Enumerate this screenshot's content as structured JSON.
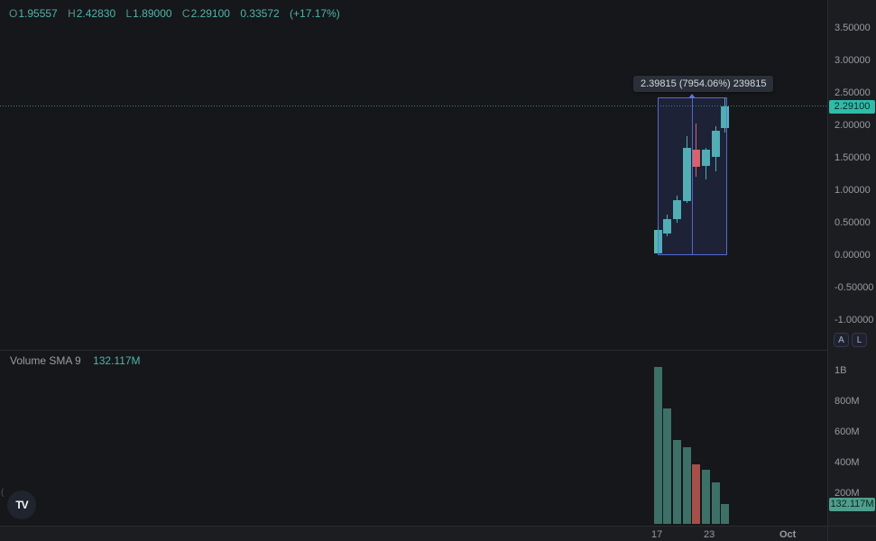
{
  "legend": {
    "o_label": "O",
    "o_value": "1.95557",
    "h_label": "H",
    "h_value": "2.42830",
    "l_label": "L",
    "l_value": "1.89000",
    "c_label": "C",
    "c_value": "2.29100",
    "change": "0.33572",
    "change_pct": "(+17.17%)"
  },
  "tooltip": {
    "text": "2.39815 (7954.06%) 239815"
  },
  "price_axis": {
    "price_badge": "2.29100",
    "buttons": [
      "A",
      "L"
    ]
  },
  "volume_pane": {
    "title": "Volume SMA 9",
    "value": "132.117M",
    "badge": "132.117M"
  },
  "time_axis": {
    "labels": [
      "17",
      "23",
      "Oct"
    ]
  },
  "logo_text": "TV",
  "left_edge_glyph": "(",
  "colors": {
    "candle_up": "#53b8ae",
    "candle_down": "#ef6156",
    "volume_up": "#3d7167",
    "volume_down": "#a44f49",
    "accent_teal": "#4db6ac",
    "measure_blue": "#5c72e4",
    "price_badge_bg": "#2fbca8",
    "volume_badge_bg": "#4f9f8e"
  },
  "chart_data": {
    "type": "candlestick",
    "legend_note": "values read from pixels; last candle from legend",
    "candles": [
      {
        "open": 0.03,
        "high": 0.44,
        "low": 0.03,
        "close": 0.392,
        "volume": 1024000000
      },
      {
        "open": 0.333,
        "high": 0.625,
        "low": 0.29,
        "close": 0.556,
        "volume": 753000000
      },
      {
        "open": 0.56,
        "high": 0.92,
        "low": 0.5,
        "close": 0.847,
        "volume": 547000000
      },
      {
        "open": 0.83,
        "high": 1.83,
        "low": 0.8,
        "close": 1.653,
        "volume": 500000000
      },
      {
        "open": 1.625,
        "high": 2.03,
        "low": 1.21,
        "close": 1.361,
        "volume": 388000000
      },
      {
        "open": 1.375,
        "high": 1.65,
        "low": 1.17,
        "close": 1.625,
        "volume": 353000000
      },
      {
        "open": 1.514,
        "high": 1.99,
        "low": 1.29,
        "close": 1.917,
        "volume": 271000000
      },
      {
        "open": 1.95557,
        "high": 2.4283,
        "low": 1.89,
        "close": 2.291,
        "volume": 132117000
      }
    ],
    "last_price": 2.291,
    "last_volume": 132117000,
    "price_ticks": [
      {
        "label": "3.50000",
        "value": 3.5
      },
      {
        "label": "3.00000",
        "value": 3.0
      },
      {
        "label": "2.50000",
        "value": 2.5
      },
      {
        "label": "2.00000",
        "value": 2.0
      },
      {
        "label": "1.50000",
        "value": 1.5
      },
      {
        "label": "1.00000",
        "value": 1.0
      },
      {
        "label": "0.50000",
        "value": 0.5
      },
      {
        "label": "0.00000",
        "value": 0.0
      },
      {
        "label": "-0.50000",
        "value": -0.5
      },
      {
        "label": "-1.00000",
        "value": -1.0
      }
    ],
    "volume_ticks": [
      {
        "label": "1B",
        "value": 1000000000
      },
      {
        "label": "800M",
        "value": 800000000
      },
      {
        "label": "600M",
        "value": 600000000
      },
      {
        "label": "400M",
        "value": 400000000
      },
      {
        "label": "200M",
        "value": 200000000
      }
    ],
    "ylim_price": [
      -1.46,
      3.93
    ],
    "ylim_volume": [
      0,
      1140000000
    ],
    "measure": {
      "from_price": 0.0302,
      "to_price": 2.4285,
      "from_index": 0,
      "to_index": 7
    },
    "x_ticks": [
      "17",
      "23",
      "Oct"
    ]
  }
}
